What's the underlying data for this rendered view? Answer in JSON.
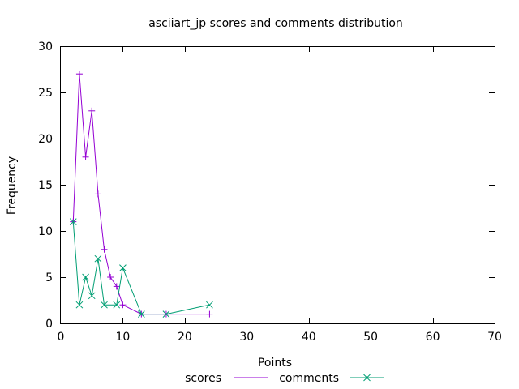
{
  "chart_data": {
    "type": "line",
    "title": "asciiart_jp scores and comments distribution",
    "xlabel": "Points",
    "ylabel": "Frequency",
    "xlim": [
      0,
      70
    ],
    "ylim": [
      0,
      30
    ],
    "xticks": [
      0,
      10,
      20,
      30,
      40,
      50,
      60,
      70
    ],
    "yticks": [
      0,
      5,
      10,
      15,
      20,
      25,
      30
    ],
    "grid": false,
    "legend_position": "bottom-center",
    "series": [
      {
        "name": "scores",
        "color": "#9400d3",
        "marker": "plus",
        "points": [
          [
            2,
            11
          ],
          [
            3,
            27
          ],
          [
            4,
            18
          ],
          [
            5,
            23
          ],
          [
            6,
            14
          ],
          [
            7,
            8
          ],
          [
            8,
            5
          ],
          [
            9,
            4
          ],
          [
            10,
            2
          ],
          [
            13,
            1
          ],
          [
            17,
            1
          ],
          [
            24,
            1
          ]
        ]
      },
      {
        "name": "comments",
        "color": "#009e73",
        "marker": "cross",
        "points": [
          [
            2,
            11
          ],
          [
            3,
            2
          ],
          [
            4,
            5
          ],
          [
            5,
            3
          ],
          [
            6,
            7
          ],
          [
            7,
            2
          ],
          [
            9,
            2
          ],
          [
            10,
            6
          ],
          [
            13,
            1
          ],
          [
            17,
            1
          ],
          [
            24,
            2
          ]
        ]
      }
    ]
  }
}
